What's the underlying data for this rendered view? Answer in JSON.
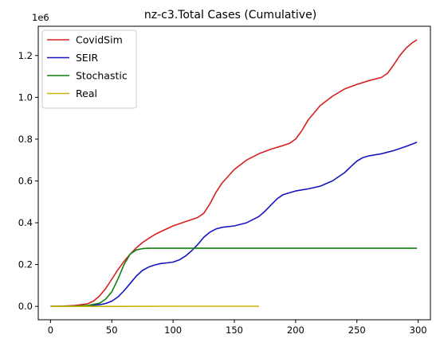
{
  "chart_data": {
    "type": "line",
    "title": "nz-c3.Total Cases (Cumulative)",
    "xlabel": "",
    "ylabel": "",
    "y_scale_label": "1e6",
    "xlim": [
      -10,
      310
    ],
    "ylim": [
      -0.064,
      1.34
    ],
    "x_ticks": [
      0,
      50,
      100,
      150,
      200,
      250,
      300
    ],
    "x_tick_labels": [
      "0",
      "50",
      "100",
      "150",
      "200",
      "250",
      "300"
    ],
    "y_ticks": [
      0.0,
      0.2,
      0.4,
      0.6,
      0.8,
      1.0,
      1.2
    ],
    "y_tick_labels": [
      "0.0",
      "0.2",
      "0.4",
      "0.6",
      "0.8",
      "1.0",
      "1.2"
    ],
    "grid": false,
    "legend_position": "top-left",
    "series": [
      {
        "name": "CovidSim",
        "color": "#d62020",
        "x": [
          0,
          10,
          20,
          30,
          35,
          40,
          45,
          50,
          55,
          60,
          65,
          70,
          75,
          80,
          85,
          90,
          100,
          110,
          115,
          120,
          125,
          130,
          135,
          140,
          150,
          160,
          170,
          180,
          190,
          195,
          200,
          205,
          210,
          220,
          230,
          240,
          250,
          260,
          270,
          275,
          280,
          285,
          290,
          295,
          299
        ],
        "values": [
          0.0,
          0.001,
          0.004,
          0.012,
          0.025,
          0.05,
          0.085,
          0.13,
          0.175,
          0.215,
          0.25,
          0.28,
          0.305,
          0.325,
          0.343,
          0.358,
          0.385,
          0.405,
          0.415,
          0.425,
          0.445,
          0.49,
          0.545,
          0.59,
          0.655,
          0.7,
          0.73,
          0.752,
          0.77,
          0.78,
          0.8,
          0.84,
          0.89,
          0.96,
          1.005,
          1.04,
          1.062,
          1.08,
          1.095,
          1.115,
          1.155,
          1.2,
          1.235,
          1.26,
          1.275
        ]
      },
      {
        "name": "SEIR",
        "color": "#1515c0",
        "x": [
          0,
          10,
          20,
          30,
          40,
          45,
          50,
          55,
          60,
          65,
          70,
          75,
          80,
          85,
          90,
          95,
          100,
          105,
          110,
          115,
          120,
          125,
          130,
          135,
          140,
          150,
          160,
          170,
          175,
          180,
          185,
          190,
          200,
          210,
          220,
          230,
          240,
          245,
          250,
          255,
          260,
          270,
          280,
          290,
          299
        ],
        "values": [
          0.0,
          0.0,
          0.001,
          0.003,
          0.008,
          0.014,
          0.025,
          0.045,
          0.075,
          0.11,
          0.145,
          0.172,
          0.188,
          0.198,
          0.205,
          0.208,
          0.212,
          0.222,
          0.24,
          0.265,
          0.295,
          0.33,
          0.355,
          0.37,
          0.378,
          0.385,
          0.4,
          0.43,
          0.455,
          0.485,
          0.515,
          0.535,
          0.552,
          0.562,
          0.575,
          0.6,
          0.64,
          0.668,
          0.695,
          0.712,
          0.72,
          0.73,
          0.745,
          0.765,
          0.785
        ]
      },
      {
        "name": "Stochastic",
        "color": "#108010",
        "x": [
          0,
          20,
          30,
          40,
          45,
          50,
          55,
          60,
          65,
          70,
          75,
          80,
          90,
          100,
          150,
          200,
          250,
          299
        ],
        "values": [
          0.0,
          0.001,
          0.004,
          0.015,
          0.035,
          0.07,
          0.13,
          0.2,
          0.25,
          0.27,
          0.276,
          0.278,
          0.278,
          0.278,
          0.278,
          0.278,
          0.278,
          0.278
        ]
      },
      {
        "name": "Real",
        "color": "#c8b400",
        "x": [
          0,
          50,
          100,
          150,
          170
        ],
        "values": [
          0.0,
          0.0,
          0.0005,
          0.0005,
          0.0005
        ]
      }
    ]
  }
}
